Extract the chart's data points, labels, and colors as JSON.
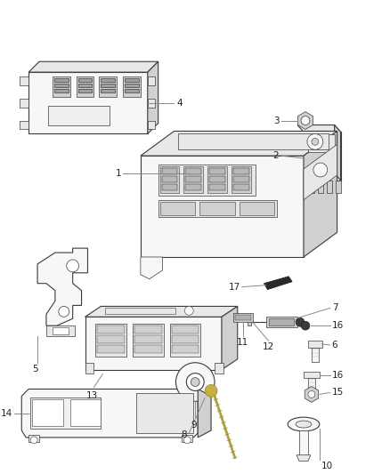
{
  "background_color": "#ffffff",
  "figure_width": 4.38,
  "figure_height": 5.33,
  "dpi": 100,
  "line_color": "#3a3a3a",
  "line_color_dark": "#1a1a1a",
  "fill_light": "#f7f7f7",
  "fill_mid": "#e8e8e8",
  "fill_dark": "#d0d0d0",
  "fill_shadow": "#c0c0c0",
  "label_fontsize": 7.5,
  "label_color": "#222222",
  "leader_color": "#888888",
  "lw_main": 0.8,
  "lw_thin": 0.5,
  "lw_thick": 1.0
}
